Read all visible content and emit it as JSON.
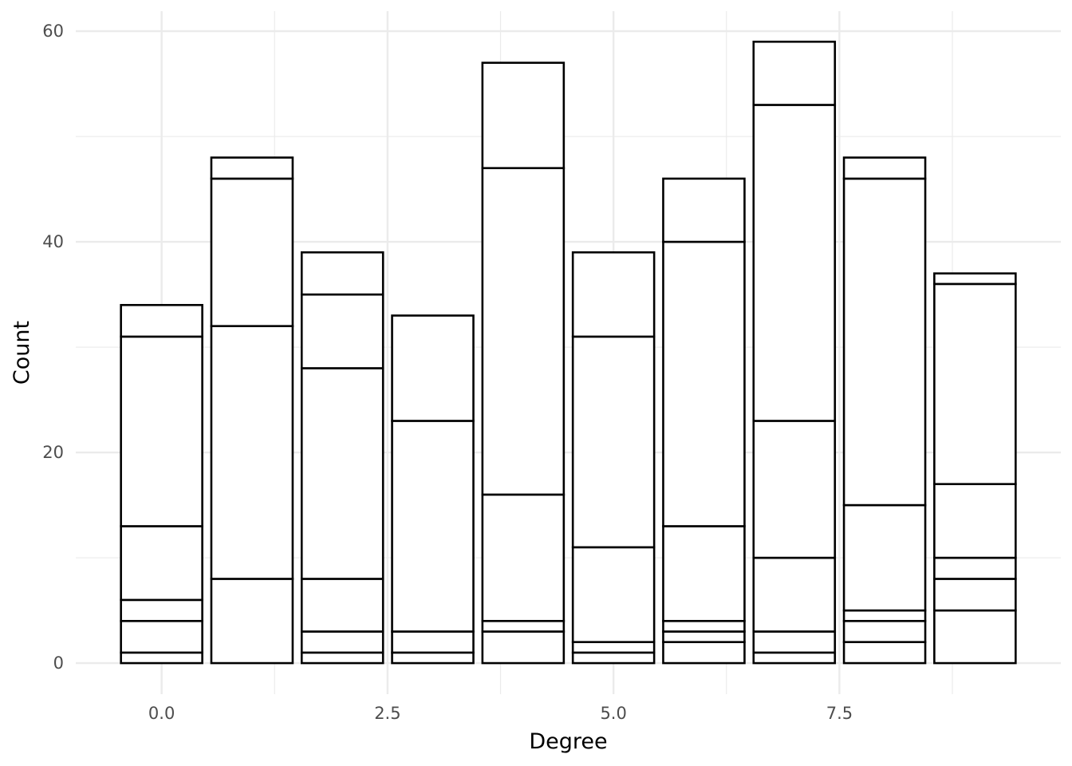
{
  "chart_data": {
    "type": "bar",
    "stacked": true,
    "title": "",
    "xlabel": "Degree",
    "ylabel": "Count",
    "xlim": [
      -0.95,
      9.95
    ],
    "ylim": [
      -2.95,
      61.9
    ],
    "x_ticks": [
      0,
      2.5,
      5,
      7.5
    ],
    "x_tick_labels": [
      "0.0",
      "2.5",
      "5.0",
      "7.5"
    ],
    "y_ticks": [
      0,
      20,
      40,
      60
    ],
    "y_tick_labels": [
      "0",
      "20",
      "40",
      "60"
    ],
    "grid": true,
    "legend": "none",
    "bar_fill": "#ffffff",
    "bar_outline": "#000000",
    "grid_color": "#ebebeb",
    "bar_width": 0.9,
    "x": [
      0,
      1,
      2,
      3,
      4,
      5,
      6,
      7,
      8,
      9
    ],
    "segment_boundaries": [
      [
        0,
        1,
        4,
        6,
        13,
        31,
        34
      ],
      [
        0,
        8,
        32,
        46,
        48
      ],
      [
        0,
        1,
        3,
        8,
        28,
        35,
        39
      ],
      [
        0,
        1,
        3,
        23,
        33
      ],
      [
        0,
        3,
        4,
        16,
        47,
        57
      ],
      [
        0,
        1,
        2,
        11,
        31,
        39
      ],
      [
        0,
        2,
        3,
        4,
        13,
        40,
        46
      ],
      [
        0,
        1,
        3,
        10,
        23,
        53,
        59
      ],
      [
        0,
        2,
        4,
        5,
        15,
        46,
        48
      ],
      [
        0,
        5,
        8,
        10,
        17,
        36,
        37
      ]
    ],
    "totals": [
      34,
      48,
      39,
      33,
      57,
      39,
      46,
      59,
      48,
      37
    ]
  }
}
